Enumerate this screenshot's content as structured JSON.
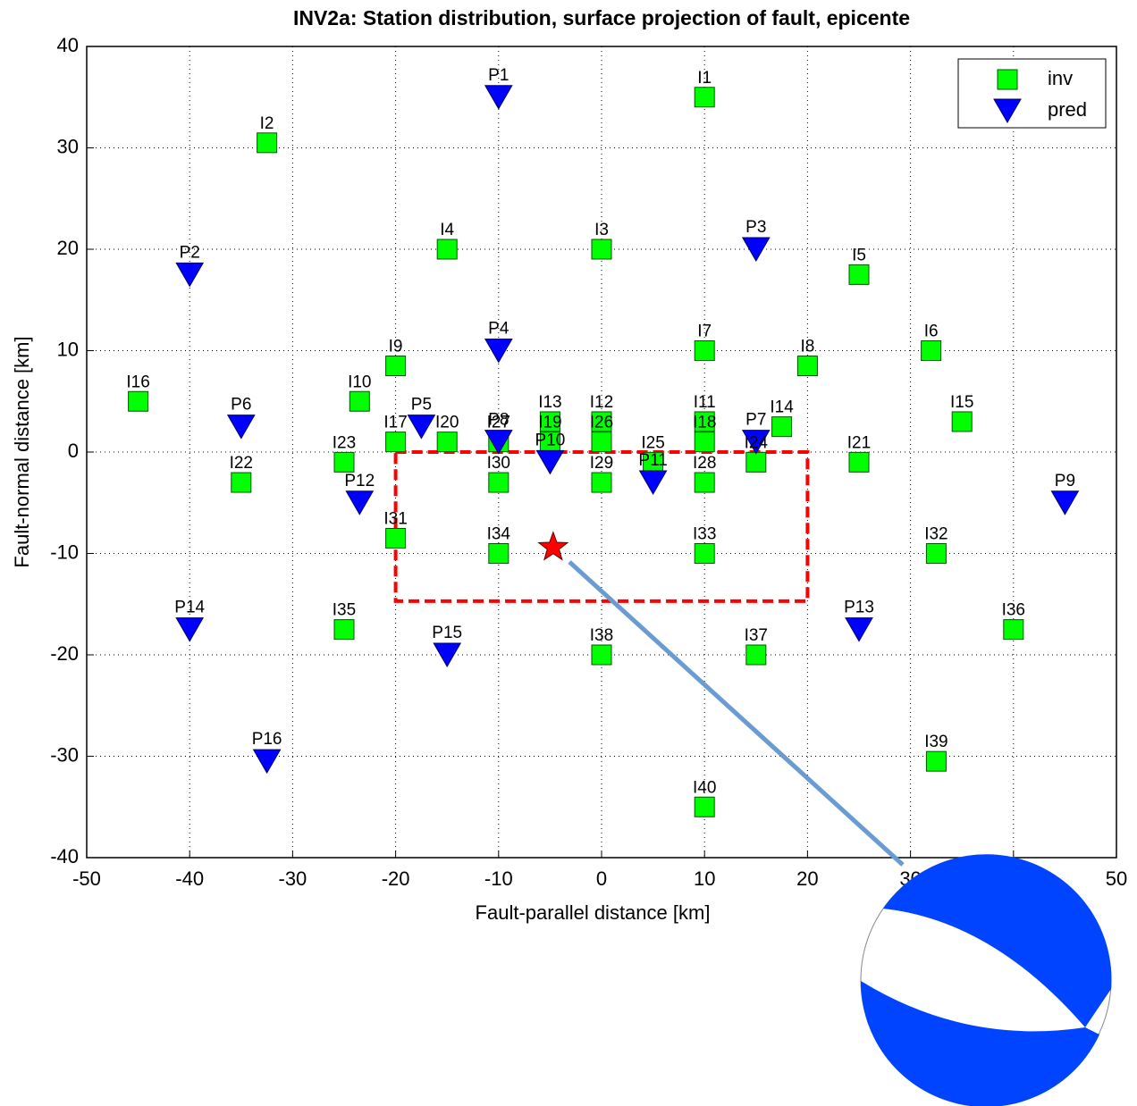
{
  "chart_data": {
    "type": "scatter",
    "title": "INV2a: Station distribution, surface projection of fault, epicente",
    "xlabel": "Fault-parallel distance [km]",
    "ylabel": "Fault-normal distance [km]",
    "xlim": [
      -50,
      50
    ],
    "ylim": [
      -40,
      40
    ],
    "xticks": [
      -50,
      -40,
      -30,
      -20,
      -10,
      0,
      10,
      20,
      30,
      40,
      50
    ],
    "yticks": [
      -40,
      -30,
      -20,
      -10,
      0,
      10,
      20,
      30,
      40
    ],
    "grid": true,
    "legend": "upper right",
    "series": [
      {
        "name": "inv",
        "color": "#00ff00",
        "marker": "square",
        "labels": [
          "I1",
          "I2",
          "I3",
          "I4",
          "I5",
          "I6",
          "I7",
          "I8",
          "I9",
          "I10",
          "I11",
          "I12",
          "I13",
          "I14",
          "I15",
          "I16",
          "I17",
          "I18",
          "I19",
          "I20",
          "I21",
          "I22",
          "I23",
          "I24",
          "I25",
          "I26",
          "I27",
          "I28",
          "I29",
          "I30",
          "I31",
          "I32",
          "I33",
          "I34",
          "I35",
          "I36",
          "I37",
          "I38",
          "I39",
          "I40"
        ],
        "x": [
          10,
          -32.5,
          0,
          -15,
          25,
          32,
          10,
          20,
          -20,
          -23.5,
          10,
          0,
          -5,
          17.5,
          35,
          -45,
          -20,
          10,
          -5,
          -15,
          25,
          -35,
          -25,
          15,
          5,
          0,
          -10,
          10,
          0,
          -10,
          -20,
          32.5,
          10,
          -10,
          -25,
          40,
          15,
          0,
          32.5,
          10
        ],
        "values": [
          35,
          30.5,
          20,
          20,
          17.5,
          10,
          10,
          8.5,
          8.5,
          5,
          3,
          3,
          3,
          2.5,
          3,
          5,
          1,
          1,
          1,
          1,
          -1,
          -3,
          -1,
          -1,
          -1,
          1,
          1,
          -3,
          -3,
          -3,
          -8.5,
          -10,
          -10,
          -10,
          -17.5,
          -17.5,
          -20,
          -20,
          -30.5,
          -35
        ]
      },
      {
        "name": "pred",
        "color": "#0000ff",
        "marker": "triangle-down",
        "labels": [
          "P1",
          "P2",
          "P3",
          "P4",
          "P5",
          "P6",
          "P7",
          "P8",
          "P9",
          "P10",
          "P11",
          "P12",
          "P13",
          "P14",
          "P15",
          "P16"
        ],
        "x": [
          -10,
          -40,
          15,
          -10,
          -17.5,
          -35,
          15,
          -10,
          45,
          -5,
          5,
          -23.5,
          25,
          -40,
          -15,
          -32.5
        ],
        "values": [
          35,
          17.5,
          20,
          10,
          2.5,
          2.5,
          1,
          1,
          -5,
          -1,
          -3,
          -5,
          -17.5,
          -17.5,
          -20,
          -30.5
        ]
      }
    ],
    "fault": {
      "x": [
        -20,
        20
      ],
      "y": [
        -14.7,
        0
      ],
      "color": "#ff0000"
    },
    "epicenter": {
      "x": -4.7,
      "y": -9.4,
      "color": "#ff0000"
    },
    "beachball_label": "P"
  }
}
